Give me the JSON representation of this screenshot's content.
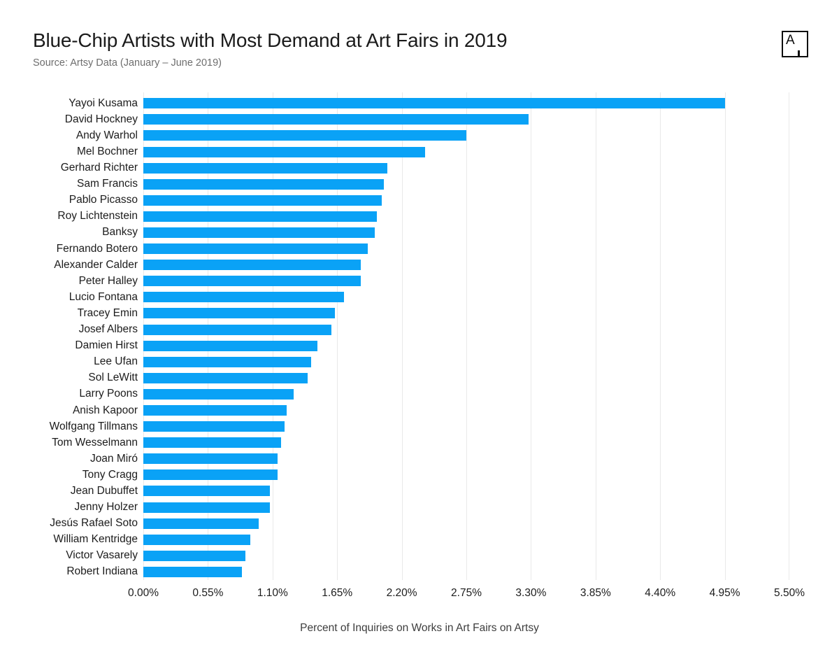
{
  "header": {
    "title": "Blue-Chip Artists with Most Demand at Art Fairs in 2019",
    "source": "Source: Artsy Data (January – June 2019)",
    "logo_letter": "A"
  },
  "colors": {
    "bar": "#0aa2f6",
    "gridline": "#e9e9e9",
    "title_text": "#1b1b1b",
    "source_text": "#6e6e6e",
    "axis_text": "#1c1c1c"
  },
  "chart_data": {
    "type": "bar",
    "orientation": "horizontal",
    "title": "Blue-Chip Artists with Most Demand at Art Fairs in 2019",
    "subtitle": "Source: Artsy Data (January – June 2019)",
    "xlabel": "Percent of Inquiries on Works in Art Fairs on Artsy",
    "ylabel": "",
    "xlim": [
      0,
      5.5
    ],
    "grid": true,
    "legend": false,
    "x_ticks": [
      "0.00%",
      "0.55%",
      "1.10%",
      "1.65%",
      "2.20%",
      "2.75%",
      "3.30%",
      "3.85%",
      "4.40%",
      "4.95%",
      "5.50%"
    ],
    "x_tick_values": [
      0,
      0.55,
      1.1,
      1.65,
      2.2,
      2.75,
      3.3,
      3.85,
      4.4,
      4.95,
      5.5
    ],
    "value_unit": "%",
    "categories": [
      "Yayoi Kusama",
      "David Hockney",
      "Andy Warhol",
      "Mel Bochner",
      "Gerhard Richter",
      "Sam Francis",
      "Pablo Picasso",
      "Roy Lichtenstein",
      "Banksy",
      "Fernando Botero",
      "Alexander Calder",
      "Peter Halley",
      "Lucio Fontana",
      "Tracey Emin",
      "Josef Albers",
      "Damien Hirst",
      "Lee Ufan",
      "Sol LeWitt",
      "Larry Poons",
      "Anish Kapoor",
      "Wolfgang Tillmans",
      "Tom Wesselmann",
      "Joan Miró",
      "Tony Cragg",
      "Jean Dubuffet",
      "Jenny Holzer",
      "Jesús Rafael Soto",
      "William Kentridge",
      "Victor Vasarely",
      "Robert Indiana"
    ],
    "values": [
      4.95,
      3.28,
      2.75,
      2.4,
      2.08,
      2.05,
      2.03,
      1.99,
      1.97,
      1.91,
      1.85,
      1.85,
      1.71,
      1.63,
      1.6,
      1.48,
      1.43,
      1.4,
      1.28,
      1.22,
      1.2,
      1.17,
      1.14,
      1.14,
      1.08,
      1.08,
      0.98,
      0.91,
      0.87,
      0.84
    ]
  }
}
